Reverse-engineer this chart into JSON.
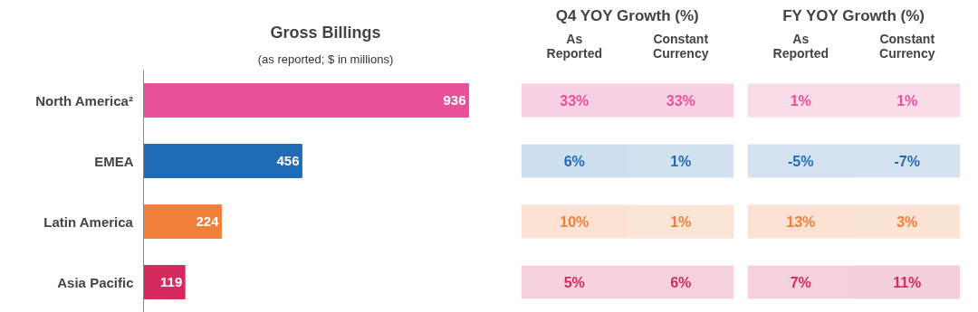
{
  "chart_data": [
    {
      "type": "bar",
      "orientation": "horizontal",
      "title": "Gross Billings",
      "subtitle": "(as reported; $ in millions)",
      "categories": [
        "North America²",
        "EMEA",
        "Latin America",
        "Asia Pacific"
      ],
      "values": [
        936,
        456,
        224,
        119
      ],
      "colors": [
        "#e8509a",
        "#1f6bb5",
        "#f07f3a",
        "#d42a5e"
      ],
      "data_labels": true
    },
    {
      "type": "heatmap",
      "title": "Q4 YOY Growth (%)",
      "categories": [
        "As\nReported",
        "Constant\nCurrency"
      ],
      "y_categories": [
        null,
        null,
        null,
        null
      ],
      "cells": [
        [
          33,
          33
        ],
        [
          6,
          1
        ],
        [
          10,
          1
        ],
        [
          5,
          6
        ]
      ],
      "cell_labels": [
        [
          "33%",
          "33%"
        ],
        [
          "6%",
          "1%"
        ],
        [
          "10%",
          "1%"
        ],
        [
          "5%",
          "6%"
        ]
      ],
      "tick_labels": "x"
    },
    {
      "type": "heatmap",
      "title": "FY YOY Growth (%)",
      "categories": [
        "As\nReported",
        "Constant\nCurrency"
      ],
      "y_categories": [
        null,
        null,
        null,
        null
      ],
      "cells": [
        [
          1,
          1
        ],
        [
          -5,
          -7
        ],
        [
          13,
          3
        ],
        [
          7,
          11
        ]
      ],
      "cell_labels": [
        [
          "1%",
          "1%"
        ],
        [
          "-5%",
          "-7%"
        ],
        [
          "13%",
          "3%"
        ],
        [
          "7%",
          "11%"
        ]
      ],
      "tick_labels": "x"
    }
  ]
}
